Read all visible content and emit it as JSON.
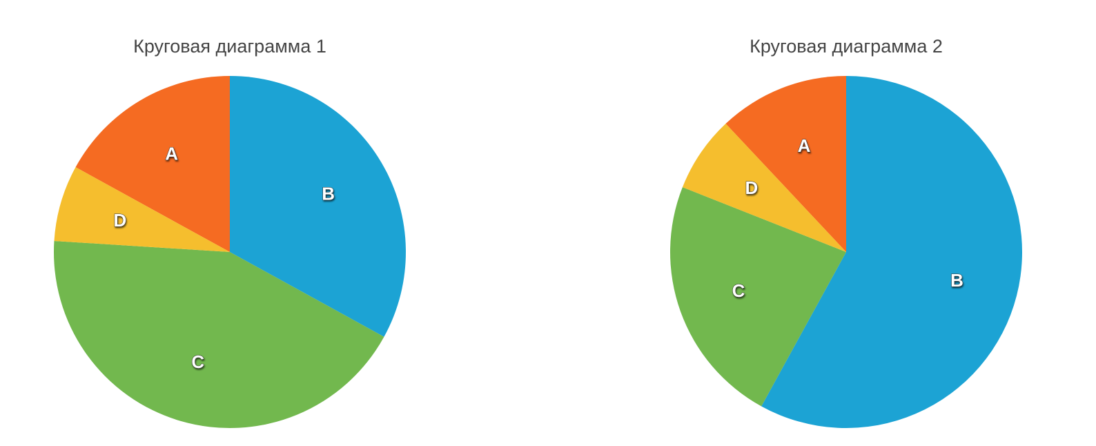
{
  "chart_data": [
    {
      "type": "pie",
      "title": "Круговая диаграмма 1",
      "categories": [
        "A",
        "B",
        "C",
        "D"
      ],
      "values": [
        17,
        33,
        43,
        7
      ],
      "colors": [
        "#f56b22",
        "#1ca3d4",
        "#72b84e",
        "#f5be2e"
      ]
    },
    {
      "type": "pie",
      "title": "Круговая диаграмма 2",
      "categories": [
        "A",
        "B",
        "C",
        "D"
      ],
      "values": [
        12,
        58,
        23,
        7
      ],
      "colors": [
        "#f56b22",
        "#1ca3d4",
        "#72b84e",
        "#f5be2e"
      ]
    }
  ]
}
